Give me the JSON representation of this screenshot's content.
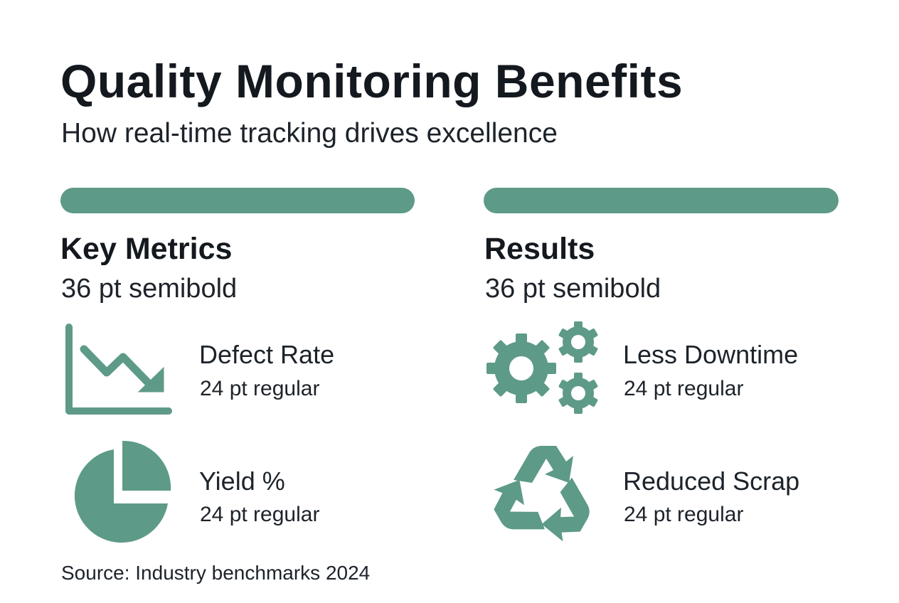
{
  "title": "Quality Monitoring Benefits",
  "subtitle": "How real-time tracking drives excellence",
  "accent_color": "#5e9a88",
  "sections": [
    {
      "heading": "Key Metrics",
      "subheading": "36 pt semibold",
      "items": [
        {
          "icon": "trend-down-chart-icon",
          "label": "Defect Rate",
          "sublabel": "24 pt regular"
        },
        {
          "icon": "pie-chart-icon",
          "label": "Yield %",
          "sublabel": "24 pt regular"
        }
      ]
    },
    {
      "heading": "Results",
      "subheading": "36 pt semibold",
      "items": [
        {
          "icon": "gears-icon",
          "label": "Less Downtime",
          "sublabel": "24 pt regular"
        },
        {
          "icon": "recycle-icon",
          "label": "Reduced Scrap",
          "sublabel": "24 pt regular"
        }
      ]
    }
  ],
  "source": "Source: Industry benchmarks 2024"
}
